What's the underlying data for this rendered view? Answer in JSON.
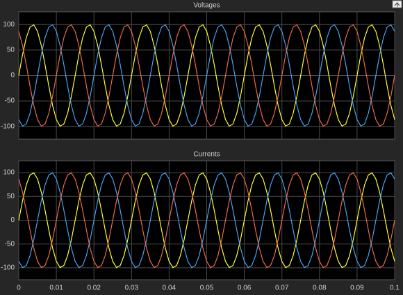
{
  "chart_data": [
    {
      "type": "line",
      "title": "Voltages",
      "x": [
        0,
        0.001,
        0.002,
        0.003,
        0.004,
        0.005,
        0.006,
        0.007,
        0.008,
        0.009,
        0.01,
        0.011,
        0.012,
        0.013,
        0.014,
        0.015,
        0.016,
        0.017,
        0.018,
        0.019,
        0.02,
        0.021,
        0.022,
        0.023,
        0.024,
        0.025,
        0.026,
        0.027,
        0.028,
        0.029,
        0.03,
        0.031,
        0.032,
        0.033,
        0.034,
        0.035,
        0.036,
        0.037,
        0.038,
        0.039,
        0.04,
        0.041,
        0.042,
        0.043,
        0.044,
        0.045,
        0.046,
        0.047,
        0.048,
        0.049,
        0.05,
        0.051,
        0.052,
        0.053,
        0.054,
        0.055,
        0.056,
        0.057,
        0.058,
        0.059,
        0.06,
        0.061,
        0.062,
        0.063,
        0.064,
        0.065,
        0.066,
        0.067,
        0.068,
        0.069,
        0.07,
        0.071,
        0.072,
        0.073,
        0.074,
        0.075,
        0.076,
        0.077,
        0.078,
        0.079,
        0.08,
        0.081,
        0.082,
        0.083,
        0.084,
        0.085,
        0.086,
        0.087,
        0.088,
        0.089,
        0.09,
        0.091,
        0.092,
        0.093,
        0.094,
        0.095,
        0.096,
        0.097,
        0.098,
        0.099,
        0.1
      ],
      "series": [
        {
          "color": "#ffff33",
          "values": [
            0,
            40.7,
            74.3,
            95.1,
            99.5,
            86.6,
            58.8,
            20.8,
            -20.8,
            -58.8,
            -86.6,
            -99.5,
            -95.1,
            -74.3,
            -40.7,
            0,
            40.7,
            74.3,
            95.1,
            99.5,
            86.6,
            58.8,
            20.8,
            -20.8,
            -58.8,
            -86.6,
            -99.5,
            -95.1,
            -74.3,
            -40.7,
            0,
            40.7,
            74.3,
            95.1,
            99.5,
            86.6,
            58.8,
            20.8,
            -20.8,
            -58.8,
            -86.6,
            -99.5,
            -95.1,
            -74.3,
            -40.7,
            0,
            40.7,
            74.3,
            95.1,
            99.5,
            86.6,
            58.8,
            20.8,
            -20.8,
            -58.8,
            -86.6,
            -99.5,
            -95.1,
            -74.3,
            -40.7,
            0,
            40.7,
            74.3,
            95.1,
            99.5,
            86.6,
            58.8,
            20.8,
            -20.8,
            -58.8,
            -86.6,
            -99.5,
            -95.1,
            -74.3,
            -40.7,
            0,
            40.7,
            74.3,
            95.1,
            99.5,
            86.6,
            58.8,
            20.8,
            -20.8,
            -58.8,
            -86.6,
            -99.5,
            -95.1,
            -74.3,
            -40.7,
            0,
            40.7,
            74.3,
            95.1,
            99.5,
            86.6,
            58.8,
            20.8,
            -20.8,
            -58.8,
            -86.6
          ]
        },
        {
          "color": "#4aa3f0",
          "values": [
            -86.6,
            -99.5,
            -95.1,
            -74.3,
            -40.7,
            0,
            40.7,
            74.3,
            95.1,
            99.5,
            86.6,
            58.8,
            20.8,
            -20.8,
            -58.8,
            -86.6,
            -99.5,
            -95.1,
            -74.3,
            -40.7,
            0,
            40.7,
            74.3,
            95.1,
            99.5,
            86.6,
            58.8,
            20.8,
            -20.8,
            -58.8,
            -86.6,
            -99.5,
            -95.1,
            -74.3,
            -40.7,
            0,
            40.7,
            74.3,
            95.1,
            99.5,
            86.6,
            58.8,
            20.8,
            -20.8,
            -58.8,
            -86.6,
            -99.5,
            -95.1,
            -74.3,
            -40.7,
            0,
            40.7,
            74.3,
            95.1,
            99.5,
            86.6,
            58.8,
            20.8,
            -20.8,
            -58.8,
            -86.6,
            -99.5,
            -95.1,
            -74.3,
            -40.7,
            0,
            40.7,
            74.3,
            95.1,
            99.5,
            86.6,
            58.8,
            20.8,
            -20.8,
            -58.8,
            -86.6,
            -99.5,
            -95.1,
            -74.3,
            -40.7,
            0,
            40.7,
            74.3,
            95.1,
            99.5,
            86.6,
            58.8,
            20.8,
            -20.8,
            -58.8,
            -86.6,
            -99.5,
            -95.1,
            -74.3,
            -40.7,
            0,
            40.7,
            74.3,
            95.1,
            99.5,
            86.6
          ]
        },
        {
          "color": "#ec6a4c",
          "values": [
            86.6,
            58.8,
            20.8,
            -20.8,
            -58.8,
            -86.6,
            -99.5,
            -95.1,
            -74.3,
            -40.7,
            0,
            40.7,
            74.3,
            95.1,
            99.5,
            86.6,
            58.8,
            20.8,
            -20.8,
            -58.8,
            -86.6,
            -99.5,
            -95.1,
            -74.3,
            -40.7,
            0,
            40.7,
            74.3,
            95.1,
            99.5,
            86.6,
            58.8,
            20.8,
            -20.8,
            -58.8,
            -86.6,
            -99.5,
            -95.1,
            -74.3,
            -40.7,
            0,
            40.7,
            74.3,
            95.1,
            99.5,
            86.6,
            58.8,
            20.8,
            -20.8,
            -58.8,
            -86.6,
            -99.5,
            -95.1,
            -74.3,
            -40.7,
            0,
            40.7,
            74.3,
            95.1,
            99.5,
            86.6,
            58.8,
            20.8,
            -20.8,
            -58.8,
            -86.6,
            -99.5,
            -95.1,
            -74.3,
            -40.7,
            0,
            40.7,
            74.3,
            95.1,
            99.5,
            86.6,
            58.8,
            20.8,
            -20.8,
            -58.8,
            -86.6,
            -99.5,
            -95.1,
            -74.3,
            -40.7,
            0,
            40.7,
            74.3,
            95.1,
            99.5,
            86.6,
            58.8,
            20.8,
            -20.8,
            -58.8,
            -86.6,
            -99.5,
            -95.1,
            -74.3,
            -40.7,
            0
          ]
        }
      ],
      "xlim": [
        0,
        0.1
      ],
      "xticks": [
        0,
        0.01,
        0.02,
        0.03,
        0.04,
        0.05,
        0.06,
        0.07,
        0.08,
        0.09,
        0.1
      ],
      "ylim": [
        -125,
        125
      ],
      "yticks": [
        -100,
        -50,
        0,
        50,
        100
      ],
      "grid": true
    },
    {
      "type": "line",
      "title": "Currents",
      "x": [
        0,
        0.001,
        0.002,
        0.003,
        0.004,
        0.005,
        0.006,
        0.007,
        0.008,
        0.009,
        0.01,
        0.011,
        0.012,
        0.013,
        0.014,
        0.015,
        0.016,
        0.017,
        0.018,
        0.019,
        0.02,
        0.021,
        0.022,
        0.023,
        0.024,
        0.025,
        0.026,
        0.027,
        0.028,
        0.029,
        0.03,
        0.031,
        0.032,
        0.033,
        0.034,
        0.035,
        0.036,
        0.037,
        0.038,
        0.039,
        0.04,
        0.041,
        0.042,
        0.043,
        0.044,
        0.045,
        0.046,
        0.047,
        0.048,
        0.049,
        0.05,
        0.051,
        0.052,
        0.053,
        0.054,
        0.055,
        0.056,
        0.057,
        0.058,
        0.059,
        0.06,
        0.061,
        0.062,
        0.063,
        0.064,
        0.065,
        0.066,
        0.067,
        0.068,
        0.069,
        0.07,
        0.071,
        0.072,
        0.073,
        0.074,
        0.075,
        0.076,
        0.077,
        0.078,
        0.079,
        0.08,
        0.081,
        0.082,
        0.083,
        0.084,
        0.085,
        0.086,
        0.087,
        0.088,
        0.089,
        0.09,
        0.091,
        0.092,
        0.093,
        0.094,
        0.095,
        0.096,
        0.097,
        0.098,
        0.099,
        0.1
      ],
      "series": [
        {
          "color": "#ffff33",
          "values": [
            0,
            40.7,
            74.3,
            95.1,
            99.5,
            86.6,
            58.8,
            20.8,
            -20.8,
            -58.8,
            -86.6,
            -99.5,
            -95.1,
            -74.3,
            -40.7,
            0,
            40.7,
            74.3,
            95.1,
            99.5,
            86.6,
            58.8,
            20.8,
            -20.8,
            -58.8,
            -86.6,
            -99.5,
            -95.1,
            -74.3,
            -40.7,
            0,
            40.7,
            74.3,
            95.1,
            99.5,
            86.6,
            58.8,
            20.8,
            -20.8,
            -58.8,
            -86.6,
            -99.5,
            -95.1,
            -74.3,
            -40.7,
            0,
            40.7,
            74.3,
            95.1,
            99.5,
            86.6,
            58.8,
            20.8,
            -20.8,
            -58.8,
            -86.6,
            -99.5,
            -95.1,
            -74.3,
            -40.7,
            0,
            40.7,
            74.3,
            95.1,
            99.5,
            86.6,
            58.8,
            20.8,
            -20.8,
            -58.8,
            -86.6,
            -99.5,
            -95.1,
            -74.3,
            -40.7,
            0,
            40.7,
            74.3,
            95.1,
            99.5,
            86.6,
            58.8,
            20.8,
            -20.8,
            -58.8,
            -86.6,
            -99.5,
            -95.1,
            -74.3,
            -40.7,
            0,
            40.7,
            74.3,
            95.1,
            99.5,
            86.6,
            58.8,
            20.8,
            -20.8,
            -58.8,
            -86.6
          ]
        },
        {
          "color": "#4aa3f0",
          "values": [
            -86.6,
            -99.5,
            -95.1,
            -74.3,
            -40.7,
            0,
            40.7,
            74.3,
            95.1,
            99.5,
            86.6,
            58.8,
            20.8,
            -20.8,
            -58.8,
            -86.6,
            -99.5,
            -95.1,
            -74.3,
            -40.7,
            0,
            40.7,
            74.3,
            95.1,
            99.5,
            86.6,
            58.8,
            20.8,
            -20.8,
            -58.8,
            -86.6,
            -99.5,
            -95.1,
            -74.3,
            -40.7,
            0,
            40.7,
            74.3,
            95.1,
            99.5,
            86.6,
            58.8,
            20.8,
            -20.8,
            -58.8,
            -86.6,
            -99.5,
            -95.1,
            -74.3,
            -40.7,
            0,
            40.7,
            74.3,
            95.1,
            99.5,
            86.6,
            58.8,
            20.8,
            -20.8,
            -58.8,
            -86.6,
            -99.5,
            -95.1,
            -74.3,
            -40.7,
            0,
            40.7,
            74.3,
            95.1,
            99.5,
            86.6,
            58.8,
            20.8,
            -20.8,
            -58.8,
            -86.6,
            -99.5,
            -95.1,
            -74.3,
            -40.7,
            0,
            40.7,
            74.3,
            95.1,
            99.5,
            86.6,
            58.8,
            20.8,
            -20.8,
            -58.8,
            -86.6,
            -99.5,
            -95.1,
            -74.3,
            -40.7,
            0,
            40.7,
            74.3,
            95.1,
            99.5,
            86.6
          ]
        },
        {
          "color": "#ec6a4c",
          "values": [
            86.6,
            58.8,
            20.8,
            -20.8,
            -58.8,
            -86.6,
            -99.5,
            -95.1,
            -74.3,
            -40.7,
            0,
            40.7,
            74.3,
            95.1,
            99.5,
            86.6,
            58.8,
            20.8,
            -20.8,
            -58.8,
            -86.6,
            -99.5,
            -95.1,
            -74.3,
            -40.7,
            0,
            40.7,
            74.3,
            95.1,
            99.5,
            86.6,
            58.8,
            20.8,
            -20.8,
            -58.8,
            -86.6,
            -99.5,
            -95.1,
            -74.3,
            -40.7,
            0,
            40.7,
            74.3,
            95.1,
            99.5,
            86.6,
            58.8,
            20.8,
            -20.8,
            -58.8,
            -86.6,
            -99.5,
            -95.1,
            -74.3,
            -40.7,
            0,
            40.7,
            74.3,
            95.1,
            99.5,
            86.6,
            58.8,
            20.8,
            -20.8,
            -58.8,
            -86.6,
            -99.5,
            -95.1,
            -74.3,
            -40.7,
            0,
            40.7,
            74.3,
            95.1,
            99.5,
            86.6,
            58.8,
            20.8,
            -20.8,
            -58.8,
            -86.6,
            -99.5,
            -95.1,
            -74.3,
            -40.7,
            0,
            40.7,
            74.3,
            95.1,
            99.5,
            86.6,
            58.8,
            20.8,
            -20.8,
            -58.8,
            -86.6,
            -99.5,
            -95.1,
            -74.3,
            -40.7,
            0
          ]
        }
      ],
      "xlim": [
        0,
        0.1
      ],
      "xticks": [
        0,
        0.01,
        0.02,
        0.03,
        0.04,
        0.05,
        0.06,
        0.07,
        0.08,
        0.09,
        0.1
      ],
      "ylim": [
        -125,
        125
      ],
      "yticks": [
        -100,
        -50,
        0,
        50,
        100
      ],
      "grid": true
    }
  ]
}
